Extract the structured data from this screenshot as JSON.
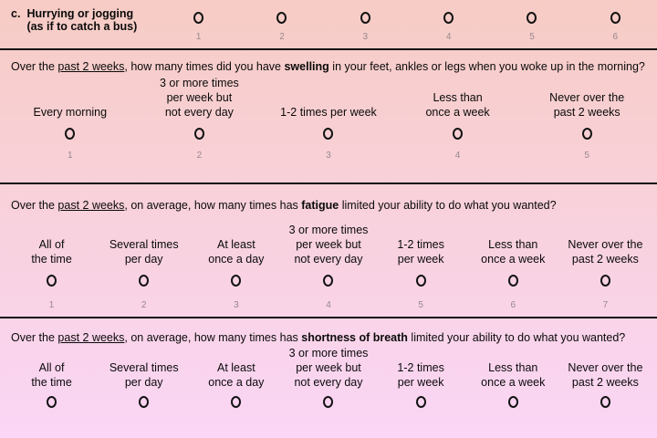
{
  "style": {
    "bg_top": "#f7ccc5",
    "bg_middle": "#f8d1da",
    "bg_bottom": "#fbd6f6",
    "divider_color": "#101010",
    "text_color": "#0a0a0a",
    "number_color": "#97888f",
    "circle_color": "#141414"
  },
  "item_c": {
    "prefix": "c.",
    "line1": "Hurrying or jogging",
    "line2": "(as if to catch a bus)",
    "options": [
      {
        "value": "1"
      },
      {
        "value": "2"
      },
      {
        "value": "3"
      },
      {
        "value": "4"
      },
      {
        "value": "5"
      },
      {
        "value": "6"
      }
    ]
  },
  "q_swelling": {
    "text_pre": "Over the ",
    "text_underline": "past 2 weeks",
    "text_mid": ", how many times did you have ",
    "text_bold": "swelling",
    "text_post": " in your feet, ankles or legs when you woke up in the morning?",
    "options": [
      {
        "lines": [
          "Every morning"
        ],
        "value": "1"
      },
      {
        "lines": [
          "3 or more times",
          "per week but",
          "not every day"
        ],
        "value": "2"
      },
      {
        "lines": [
          "1-2 times per week"
        ],
        "value": "3"
      },
      {
        "lines": [
          "Less than",
          "once a week"
        ],
        "value": "4"
      },
      {
        "lines": [
          "Never over the",
          "past 2 weeks"
        ],
        "value": "5"
      }
    ]
  },
  "q_fatigue": {
    "text_pre": "Over the ",
    "text_underline": "past 2 weeks",
    "text_mid": ", on average, how many times has ",
    "text_bold": "fatigue",
    "text_post": " limited your ability to do what you wanted?",
    "options": [
      {
        "lines": [
          "All of",
          "the time"
        ],
        "value": "1"
      },
      {
        "lines": [
          "Several times",
          "per day"
        ],
        "value": "2"
      },
      {
        "lines": [
          "At least",
          "once a day"
        ],
        "value": "3"
      },
      {
        "lines": [
          "3 or more times",
          "per week but",
          "not every day"
        ],
        "value": "4"
      },
      {
        "lines": [
          "1-2 times",
          "per week"
        ],
        "value": "5"
      },
      {
        "lines": [
          "Less than",
          "once a week"
        ],
        "value": "6"
      },
      {
        "lines": [
          "Never over the",
          "past 2 weeks"
        ],
        "value": "7"
      }
    ]
  },
  "q_breath": {
    "text_pre": "Over the ",
    "text_underline": "past 2 weeks",
    "text_mid": ", on average, how many times has ",
    "text_bold": "shortness of breath",
    "text_post": " limited your ability to do what you wanted?",
    "options": [
      {
        "lines": [
          "All of",
          "the time"
        ]
      },
      {
        "lines": [
          "Several times",
          "per day"
        ]
      },
      {
        "lines": [
          "At least",
          "once a day"
        ]
      },
      {
        "lines": [
          "3 or more times",
          "per week but",
          "not every day"
        ]
      },
      {
        "lines": [
          "1-2 times",
          "per week"
        ]
      },
      {
        "lines": [
          "Less than",
          "once a week"
        ]
      },
      {
        "lines": [
          "Never over the",
          "past 2 weeks"
        ]
      }
    ]
  }
}
